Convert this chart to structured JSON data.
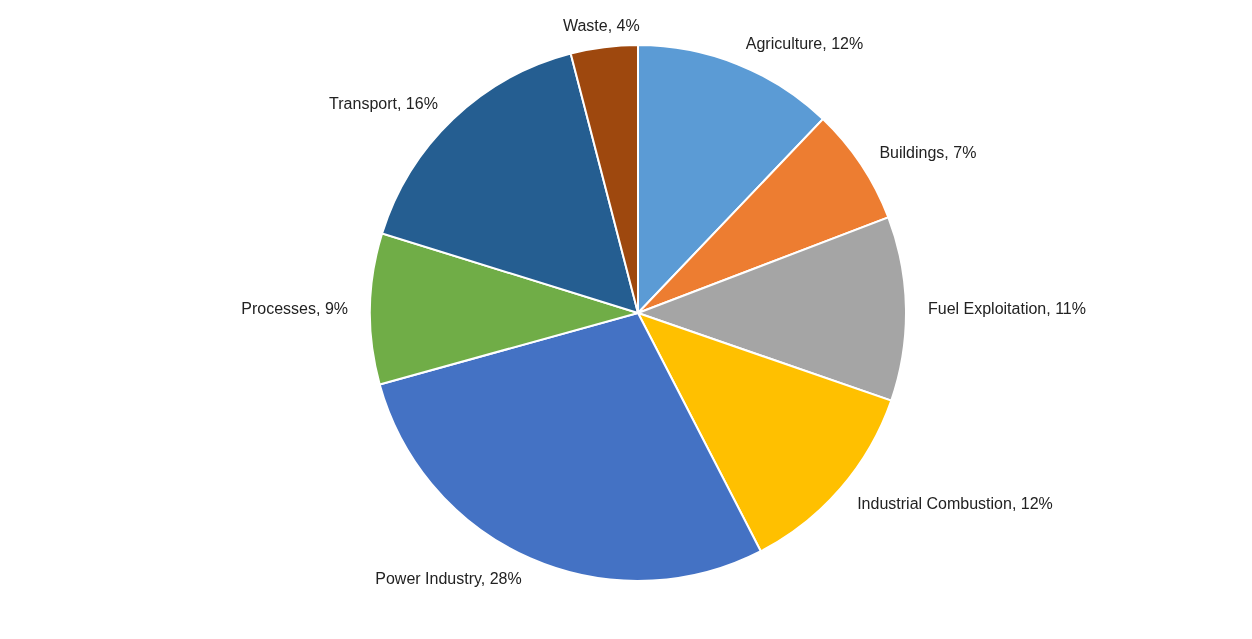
{
  "chart_data": {
    "type": "pie",
    "categories": [
      "Agriculture",
      "Buildings",
      "Fuel Exploitation",
      "Industrial Combustion",
      "Power Industry",
      "Processes",
      "Transport",
      "Waste"
    ],
    "values": [
      12,
      7,
      11,
      12,
      28,
      9,
      16,
      4
    ],
    "value_labels": [
      "12%",
      "7%",
      "11%",
      "12%",
      "28%",
      "9%",
      "16%",
      "4%"
    ],
    "colors": [
      "#5b9bd5",
      "#ed7d31",
      "#a5a5a5",
      "#ffc000",
      "#4472c4",
      "#70ad47",
      "#255e91",
      "#9e480e"
    ]
  }
}
